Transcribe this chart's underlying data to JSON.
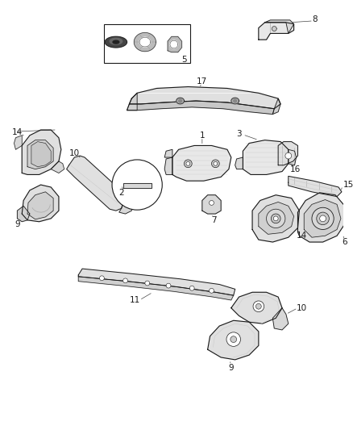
{
  "bg_color": "#ffffff",
  "line_color": "#1a1a1a",
  "fig_width": 4.38,
  "fig_height": 5.33,
  "dpi": 100,
  "hatch_color": "#555555",
  "part_face": "#f0f0f0",
  "part_edge": "#1a1a1a"
}
